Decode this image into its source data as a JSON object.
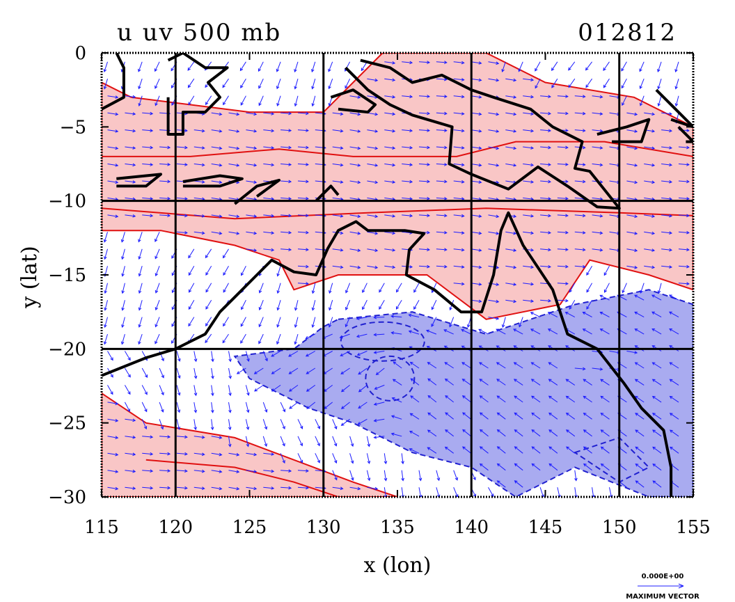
{
  "chart_data": {
    "type": "vector-contour map",
    "title_left": "u uv 500 mb",
    "title_right": "012812",
    "xlabel": "x (lon)",
    "ylabel": "y (lat)",
    "xlim": [
      115,
      155
    ],
    "ylim": [
      -30,
      0
    ],
    "xticks": [
      "115",
      "120",
      "125",
      "130",
      "135",
      "140",
      "145",
      "150",
      "155"
    ],
    "yticks": [
      "0",
      "−5",
      "−10",
      "−15",
      "−20",
      "−25",
      "−30"
    ],
    "grid_lines": {
      "lon": [
        120,
        130,
        140,
        150
      ],
      "lat": [
        -10,
        -20
      ]
    },
    "legend": {
      "value": "0.000E+00",
      "label": "MAXIMUM VECTOR"
    },
    "colors": {
      "positive_fill": "#f9c6c6",
      "positive_line": "#e01010",
      "negative_fill": "#a9abf0",
      "negative_line": "#2020d0",
      "vector": "#1c1cff",
      "coast": "#000000"
    },
    "positive_regions": [
      [
        [
          117,
          -3
        ],
        [
          125,
          -4
        ],
        [
          130,
          -4
        ],
        [
          134,
          0
        ],
        [
          141,
          0
        ],
        [
          145,
          -2
        ],
        [
          151,
          -3
        ],
        [
          155,
          -5
        ],
        [
          155,
          -16
        ],
        [
          152,
          -15
        ],
        [
          148,
          -14
        ],
        [
          146,
          -17
        ],
        [
          141,
          -18
        ],
        [
          137,
          -15
        ],
        [
          131,
          -15
        ],
        [
          128,
          -16
        ],
        [
          127,
          -14
        ],
        [
          124,
          -13
        ],
        [
          119,
          -12
        ],
        [
          115,
          -12
        ],
        [
          115,
          -2
        ]
      ],
      [
        [
          115,
          -23
        ],
        [
          118,
          -25
        ],
        [
          124,
          -26
        ],
        [
          132,
          -29
        ],
        [
          135,
          -30
        ],
        [
          115,
          -30
        ]
      ],
      [
        [
          146,
          -20.5
        ],
        [
          149,
          -20
        ],
        [
          151,
          -20
        ],
        [
          150,
          -21.5
        ],
        [
          147,
          -21.5
        ]
      ]
    ],
    "negative_regions": [
      [
        [
          131,
          -18
        ],
        [
          136,
          -17.5
        ],
        [
          141,
          -19
        ],
        [
          147,
          -17
        ],
        [
          152,
          -16
        ],
        [
          155,
          -17
        ],
        [
          155,
          -30
        ],
        [
          152,
          -30
        ],
        [
          147,
          -28
        ],
        [
          143,
          -30
        ],
        [
          140,
          -28
        ],
        [
          136,
          -27
        ],
        [
          132,
          -25
        ],
        [
          129,
          -24
        ],
        [
          125,
          -22
        ],
        [
          124,
          -20.5
        ],
        [
          128,
          -20
        ],
        [
          130,
          -18.5
        ]
      ],
      [
        [
          147,
          -27
        ],
        [
          150,
          -26
        ],
        [
          152,
          -28
        ],
        [
          150,
          -29
        ]
      ]
    ],
    "coastlines": [
      [
        [
          115,
          -21.8
        ],
        [
          118,
          -20.6
        ],
        [
          120,
          -20
        ],
        [
          122,
          -19
        ],
        [
          123,
          -17.5
        ],
        [
          124,
          -16.5
        ],
        [
          125.5,
          -15
        ],
        [
          126.5,
          -14
        ],
        [
          128,
          -14.8
        ],
        [
          129.5,
          -15
        ],
        [
          130.3,
          -13.2
        ],
        [
          131,
          -12
        ],
        [
          132.2,
          -11.4
        ],
        [
          133,
          -12
        ],
        [
          134,
          -12
        ],
        [
          135.5,
          -12
        ],
        [
          136.8,
          -12.2
        ],
        [
          135.8,
          -13.3
        ],
        [
          135.6,
          -15
        ],
        [
          137.5,
          -16
        ],
        [
          139.3,
          -17.5
        ],
        [
          140.7,
          -17.5
        ],
        [
          141.5,
          -15
        ],
        [
          142,
          -12
        ],
        [
          142.5,
          -10.8
        ],
        [
          143.5,
          -13
        ],
        [
          144.5,
          -14.5
        ],
        [
          145.5,
          -16
        ],
        [
          146.5,
          -19
        ],
        [
          148.5,
          -20
        ],
        [
          150.3,
          -22.3
        ],
        [
          151.5,
          -24
        ],
        [
          153,
          -25.5
        ],
        [
          153.5,
          -28
        ],
        [
          153.5,
          -30
        ]
      ],
      [
        [
          120.5,
          -8.7
        ],
        [
          123,
          -8.3
        ],
        [
          124.5,
          -8.5
        ],
        [
          123,
          -9
        ],
        [
          120.5,
          -9
        ]
      ],
      [
        [
          116,
          -8.5
        ],
        [
          119,
          -8.2
        ],
        [
          118,
          -9
        ],
        [
          116,
          -9
        ]
      ],
      [
        [
          124,
          -10.2
        ],
        [
          125.5,
          -9
        ],
        [
          127,
          -8.6
        ],
        [
          125.5,
          -9.7
        ]
      ],
      [
        [
          129.5,
          -10
        ],
        [
          130.5,
          -9
        ],
        [
          131,
          -9.6
        ]
      ],
      [
        [
          130.5,
          -3
        ],
        [
          132,
          -2.5
        ],
        [
          133.5,
          -3.5
        ],
        [
          133,
          -4
        ],
        [
          131,
          -3.8
        ]
      ],
      [
        [
          132.5,
          -0.5
        ],
        [
          134.5,
          -1
        ],
        [
          136,
          -2
        ],
        [
          138,
          -1.5
        ],
        [
          140,
          -2.5
        ],
        [
          141.5,
          -3
        ],
        [
          144,
          -3.8
        ],
        [
          145.5,
          -5
        ],
        [
          147.5,
          -6
        ],
        [
          147,
          -7.8
        ],
        [
          148,
          -8
        ],
        [
          150,
          -10.5
        ],
        [
          148.5,
          -10.4
        ],
        [
          146.5,
          -9
        ],
        [
          144.5,
          -7.7
        ],
        [
          142.5,
          -9.2
        ],
        [
          140,
          -8.2
        ],
        [
          138.5,
          -7.5
        ],
        [
          138.7,
          -5
        ],
        [
          136,
          -4.2
        ],
        [
          134.5,
          -3.5
        ],
        [
          133,
          -2.5
        ],
        [
          131.5,
          -1
        ]
      ],
      [
        [
          119.5,
          -0.5
        ],
        [
          120.5,
          0
        ],
        [
          122,
          -1
        ],
        [
          123.5,
          -1
        ],
        [
          122.2,
          -2
        ],
        [
          123,
          -3
        ],
        [
          122,
          -4
        ],
        [
          120.5,
          -4
        ],
        [
          120.5,
          -5.5
        ],
        [
          119.5,
          -5.5
        ],
        [
          119.5,
          -3
        ]
      ],
      [
        [
          115,
          -3.8
        ],
        [
          116.5,
          -3
        ],
        [
          116.5,
          -1
        ],
        [
          116,
          0
        ]
      ],
      [
        [
          152.5,
          -2.5
        ],
        [
          154,
          -4
        ],
        [
          155,
          -5
        ],
        [
          153.5,
          -4.5
        ]
      ],
      [
        [
          148.5,
          -5.5
        ],
        [
          150.5,
          -5
        ],
        [
          152,
          -4.5
        ],
        [
          151.5,
          -6
        ],
        [
          149.5,
          -6
        ]
      ],
      [
        [
          154,
          -5
        ],
        [
          155,
          -6
        ],
        [
          154.5,
          -6
        ]
      ]
    ]
  }
}
